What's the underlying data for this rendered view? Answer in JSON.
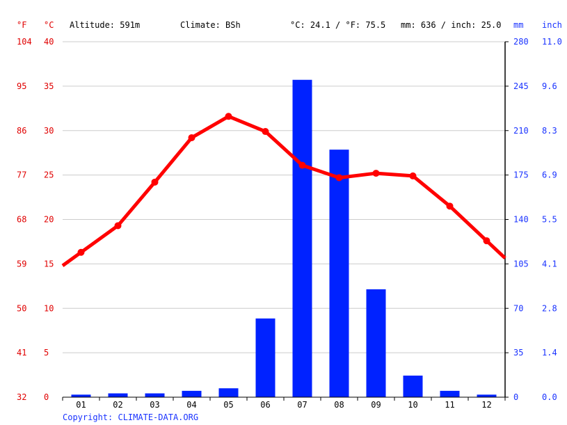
{
  "header": {
    "unit_f": "°F",
    "unit_c": "°C",
    "unit_mm": "mm",
    "unit_inch": "inch",
    "altitude": "Altitude: 591m",
    "climate": "Climate: BSh",
    "temp_avg": "°C: 24.1 / °F: 75.5",
    "precip_total": "mm: 636 / inch: 25.0"
  },
  "copyright": "Copyright: CLIMATE-DATA.ORG",
  "colors": {
    "temperature": "#ff0000",
    "precipitation": "#0022ff",
    "grid": "#cccccc"
  },
  "chart_data": {
    "type": "bar+line",
    "categories": [
      "01",
      "02",
      "03",
      "04",
      "05",
      "06",
      "07",
      "08",
      "09",
      "10",
      "11",
      "12"
    ],
    "series": [
      {
        "type": "line",
        "axis": "celsius",
        "values": [
          16.3,
          19.3,
          24.2,
          29.2,
          31.6,
          29.9,
          26.1,
          24.7,
          25.2,
          24.9,
          21.5,
          17.6
        ]
      },
      {
        "type": "bar",
        "axis": "mm",
        "values": [
          2,
          3,
          3,
          5,
          7,
          62,
          250,
          195,
          85,
          17,
          5,
          2
        ]
      }
    ],
    "axes": {
      "fahrenheit": {
        "ticks": [
          "104",
          "95",
          "86",
          "77",
          "68",
          "59",
          "50",
          "41",
          "32"
        ]
      },
      "celsius": {
        "ticks": [
          "40",
          "35",
          "30",
          "25",
          "20",
          "15",
          "10",
          "5",
          "0"
        ],
        "range": [
          0,
          40
        ]
      },
      "mm": {
        "ticks": [
          "280",
          "245",
          "210",
          "175",
          "140",
          "105",
          "70",
          "35",
          "0"
        ],
        "range": [
          0,
          280
        ]
      },
      "inch": {
        "ticks": [
          "11.0",
          "9.6",
          "8.3",
          "6.9",
          "5.5",
          "4.1",
          "2.8",
          "1.4",
          "0.0"
        ]
      }
    },
    "grid": true
  }
}
